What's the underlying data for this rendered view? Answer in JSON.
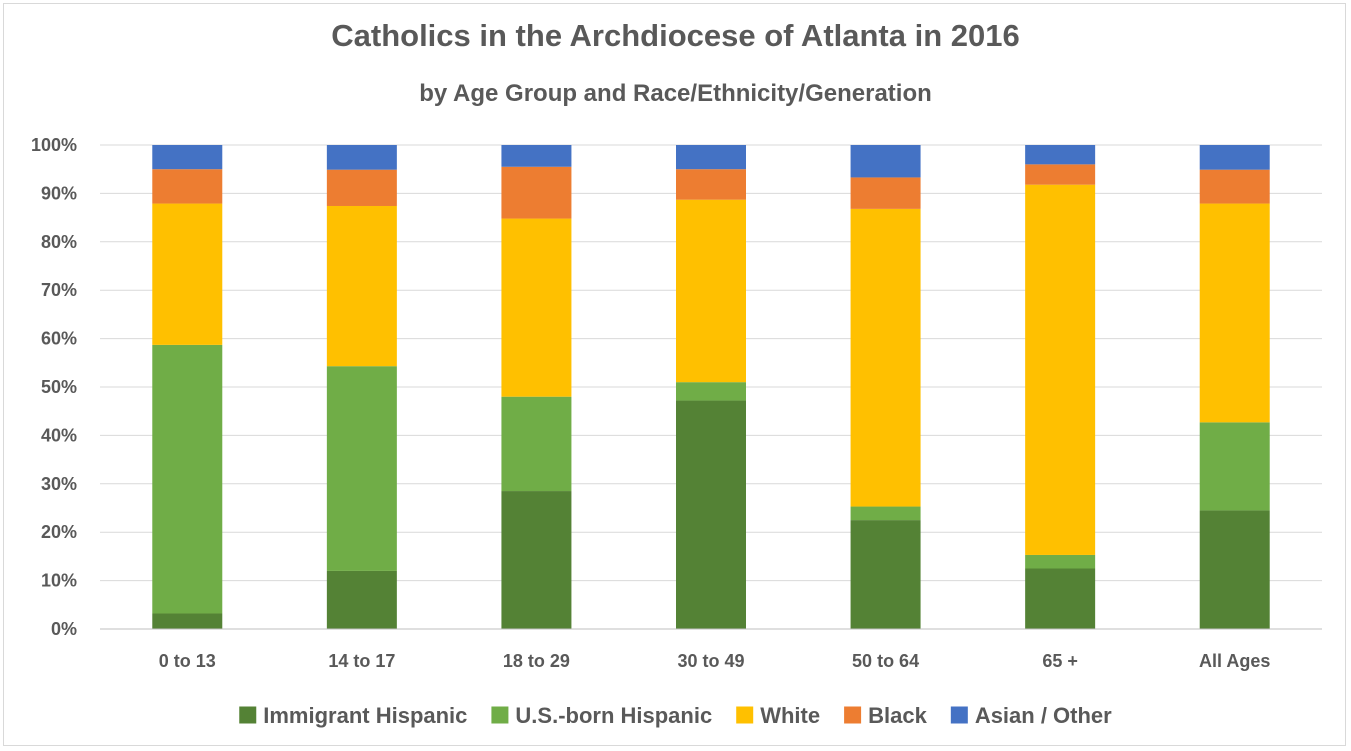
{
  "chart_data": {
    "type": "bar",
    "stacked": true,
    "title": "Catholics in the Archdiocese of Atlanta in 2016",
    "subtitle": "by Age Group and Race/Ethnicity/Generation",
    "categories": [
      "0 to 13",
      "14 to 17",
      "18 to 29",
      "30 to 49",
      "50 to 64",
      "65 +",
      "All Ages"
    ],
    "ylim": [
      0,
      100
    ],
    "yticks": [
      "0%",
      "10%",
      "20%",
      "30%",
      "40%",
      "50%",
      "60%",
      "70%",
      "80%",
      "90%",
      "100%"
    ],
    "grid": true,
    "legend_position": "bottom",
    "series": [
      {
        "name": "Immigrant Hispanic",
        "color": "#548235",
        "values": [
          3.2,
          12.0,
          28.5,
          47.2,
          22.5,
          12.5,
          24.5
        ]
      },
      {
        "name": "U.S.-born Hispanic",
        "color": "#70ad47",
        "values": [
          55.5,
          42.3,
          19.5,
          3.8,
          2.8,
          2.8,
          18.2
        ]
      },
      {
        "name": "White",
        "color": "#ffc000",
        "values": [
          29.2,
          33.1,
          36.8,
          37.7,
          61.5,
          76.5,
          45.2
        ]
      },
      {
        "name": "Black",
        "color": "#ed7d31",
        "values": [
          7.1,
          7.5,
          10.7,
          6.3,
          6.5,
          4.2,
          7.0
        ]
      },
      {
        "name": "Asian / Other",
        "color": "#4472c4",
        "values": [
          5.0,
          5.1,
          4.5,
          5.0,
          6.7,
          4.0,
          5.1
        ]
      }
    ]
  }
}
